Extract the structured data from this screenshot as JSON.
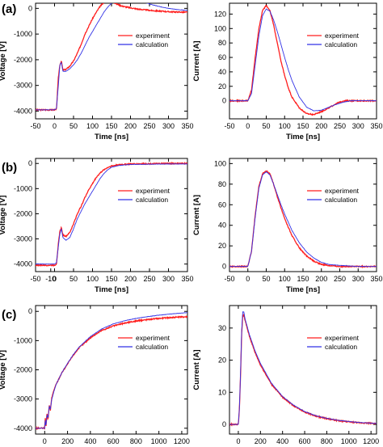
{
  "panel_labels": [
    "(a)",
    "(b)",
    "(c)"
  ],
  "colors": {
    "experiment": "#ff1e1e",
    "calculation": "#3232e6"
  },
  "chart_data": [
    {
      "type": "line",
      "panel": "(a)",
      "quantity": "voltage",
      "xlabel": "Time [ns]",
      "ylabel": "Voltage [V]",
      "xlim": [
        -50,
        350
      ],
      "ylim": [
        -4300,
        200
      ],
      "xticks": [
        -50,
        0,
        50,
        100,
        150,
        200,
        250,
        300,
        350
      ],
      "yticks": [
        -4000,
        -3000,
        -2000,
        -1000,
        0
      ],
      "legend": "top-right",
      "series": [
        {
          "name": "experiment",
          "x": [
            -50,
            0,
            5,
            10,
            14,
            18,
            22,
            30,
            40,
            50,
            60,
            70,
            80,
            90,
            100,
            110,
            120,
            130,
            140,
            150,
            160,
            170,
            180,
            200,
            220,
            240,
            260,
            280,
            300,
            320,
            350
          ],
          "y": [
            -3950,
            -3950,
            -3950,
            -2700,
            -2200,
            -2050,
            -2400,
            -2380,
            -2250,
            -2050,
            -1750,
            -1400,
            -1000,
            -700,
            -400,
            -150,
            80,
            230,
            300,
            270,
            200,
            130,
            80,
            20,
            -30,
            -60,
            -90,
            -110,
            -130,
            -140,
            -150
          ]
        },
        {
          "name": "calculation",
          "x": [
            -50,
            0,
            5,
            10,
            14,
            18,
            22,
            30,
            40,
            50,
            60,
            70,
            80,
            90,
            100,
            110,
            120,
            130,
            140,
            150,
            160,
            170,
            180,
            200,
            220,
            240,
            260,
            280,
            300,
            320,
            350
          ],
          "y": [
            -3950,
            -3950,
            -3900,
            -3000,
            -2200,
            -2100,
            -2450,
            -2450,
            -2350,
            -2200,
            -2000,
            -1750,
            -1450,
            -1150,
            -900,
            -650,
            -400,
            -150,
            50,
            200,
            300,
            330,
            340,
            320,
            280,
            220,
            130,
            60,
            0,
            -40,
            -80
          ]
        }
      ]
    },
    {
      "type": "line",
      "panel": "(a)",
      "quantity": "current",
      "xlabel": "Time [ns]",
      "ylabel": "Current [A]",
      "xlim": [
        -50,
        350
      ],
      "ylim": [
        -25,
        135
      ],
      "xticks": [
        -50,
        0,
        50,
        100,
        150,
        200,
        250,
        300,
        350
      ],
      "yticks": [
        0,
        20,
        40,
        60,
        80,
        100,
        120
      ],
      "legend": "top-right",
      "series": [
        {
          "name": "experiment",
          "x": [
            -50,
            0,
            10,
            20,
            30,
            40,
            50,
            60,
            70,
            80,
            90,
            100,
            110,
            120,
            140,
            160,
            180,
            200,
            220,
            240,
            260,
            280,
            300,
            350
          ],
          "y": [
            0,
            0,
            15,
            60,
            100,
            125,
            132,
            125,
            105,
            80,
            55,
            35,
            18,
            5,
            -10,
            -18,
            -19,
            -15,
            -10,
            -4,
            0,
            0,
            0,
            0
          ]
        },
        {
          "name": "calculation",
          "x": [
            -50,
            0,
            10,
            20,
            30,
            40,
            50,
            60,
            70,
            80,
            90,
            100,
            110,
            120,
            140,
            160,
            180,
            200,
            220,
            240,
            260,
            280,
            300,
            350
          ],
          "y": [
            0,
            0,
            10,
            50,
            90,
            118,
            127,
            124,
            112,
            96,
            78,
            60,
            43,
            28,
            5,
            -9,
            -14,
            -13,
            -9,
            -5,
            -2,
            0,
            0,
            0
          ]
        }
      ]
    },
    {
      "type": "line",
      "panel": "(b)",
      "quantity": "voltage",
      "xlabel": "Time [ns]",
      "ylabel": "Voltage [V]",
      "xlim": [
        -50,
        350
      ],
      "ylim": [
        -4300,
        200
      ],
      "xticks": [
        -50,
        -10,
        0,
        50,
        100,
        150,
        200,
        250,
        300,
        350
      ],
      "yticks": [
        -4000,
        -3000,
        -2000,
        -1000,
        0
      ],
      "legend": "top-right",
      "series": [
        {
          "name": "experiment",
          "x": [
            -50,
            0,
            5,
            10,
            14,
            18,
            22,
            30,
            40,
            50,
            60,
            70,
            80,
            90,
            100,
            110,
            120,
            130,
            140,
            150,
            170,
            200,
            250,
            300,
            350
          ],
          "y": [
            -4050,
            -4050,
            -4000,
            -3200,
            -2700,
            -2550,
            -2850,
            -2900,
            -2750,
            -2400,
            -2000,
            -1700,
            -1350,
            -1050,
            -800,
            -550,
            -380,
            -250,
            -160,
            -100,
            -50,
            -20,
            -10,
            0,
            0
          ]
        },
        {
          "name": "calculation",
          "x": [
            -50,
            0,
            5,
            10,
            14,
            18,
            22,
            30,
            40,
            50,
            60,
            70,
            80,
            90,
            100,
            110,
            120,
            130,
            140,
            150,
            170,
            200,
            250,
            300,
            350
          ],
          "y": [
            -4000,
            -4000,
            -3950,
            -3300,
            -2800,
            -2600,
            -2950,
            -3050,
            -2950,
            -2600,
            -2200,
            -1900,
            -1600,
            -1350,
            -1100,
            -850,
            -600,
            -400,
            -250,
            -150,
            -80,
            -40,
            -30,
            -20,
            -20
          ]
        }
      ]
    },
    {
      "type": "line",
      "panel": "(b)",
      "quantity": "current",
      "xlabel": "Time [ns]",
      "ylabel": "Current [A]",
      "xlim": [
        -50,
        350
      ],
      "ylim": [
        -5,
        105
      ],
      "xticks": [
        -50,
        0,
        50,
        100,
        150,
        200,
        250,
        300,
        350
      ],
      "yticks": [
        0,
        20,
        40,
        60,
        80,
        100
      ],
      "legend": "top-right",
      "series": [
        {
          "name": "experiment",
          "x": [
            -50,
            0,
            10,
            20,
            30,
            40,
            50,
            60,
            70,
            80,
            90,
            100,
            110,
            120,
            140,
            160,
            180,
            200,
            220,
            250,
            300,
            350
          ],
          "y": [
            0,
            0,
            15,
            50,
            78,
            90,
            93,
            90,
            80,
            68,
            57,
            47,
            38,
            30,
            18,
            10,
            5,
            2,
            1,
            0,
            0,
            0
          ]
        },
        {
          "name": "calculation",
          "x": [
            -50,
            0,
            10,
            20,
            30,
            40,
            50,
            60,
            70,
            80,
            90,
            100,
            110,
            120,
            140,
            160,
            180,
            200,
            220,
            250,
            300,
            350
          ],
          "y": [
            0,
            0,
            15,
            48,
            76,
            89,
            92,
            89,
            80,
            70,
            60,
            51,
            43,
            35,
            23,
            14,
            8,
            4,
            2,
            1,
            0,
            0
          ]
        }
      ]
    },
    {
      "type": "line",
      "panel": "(c)",
      "quantity": "voltage",
      "xlabel": "Time [ns]",
      "ylabel": "Voltage [V]",
      "xlim": [
        -80,
        1250
      ],
      "ylim": [
        -4200,
        200
      ],
      "xticks": [
        0,
        200,
        400,
        600,
        800,
        1000,
        1200
      ],
      "yticks": [
        -4000,
        -3000,
        -2000,
        -1000,
        0
      ],
      "legend": "top-right",
      "series": [
        {
          "name": "experiment",
          "x": [
            -80,
            0,
            5,
            10,
            20,
            30,
            40,
            50,
            60,
            80,
            100,
            150,
            200,
            250,
            300,
            400,
            500,
            600,
            700,
            800,
            900,
            1000,
            1100,
            1250
          ],
          "y": [
            -4000,
            -4000,
            -3600,
            -4000,
            -3500,
            -3700,
            -3200,
            -3400,
            -3000,
            -2700,
            -2500,
            -2100,
            -1800,
            -1500,
            -1250,
            -900,
            -650,
            -500,
            -400,
            -330,
            -280,
            -240,
            -210,
            -180
          ]
        },
        {
          "name": "calculation",
          "x": [
            -80,
            0,
            5,
            10,
            20,
            30,
            40,
            50,
            60,
            80,
            100,
            150,
            200,
            250,
            300,
            400,
            500,
            600,
            700,
            800,
            900,
            1000,
            1100,
            1250
          ],
          "y": [
            -4000,
            -4000,
            -3700,
            -3950,
            -3550,
            -3650,
            -3250,
            -3350,
            -3050,
            -2750,
            -2500,
            -2100,
            -1780,
            -1480,
            -1230,
            -860,
            -600,
            -430,
            -320,
            -240,
            -180,
            -130,
            -90,
            -40
          ]
        }
      ]
    },
    {
      "type": "line",
      "panel": "(c)",
      "quantity": "current",
      "xlabel": "Time [ns]",
      "ylabel": "Current [A]",
      "xlim": [
        -80,
        1250
      ],
      "ylim": [
        -3,
        37
      ],
      "xticks": [
        0,
        200,
        400,
        600,
        800,
        1000,
        1200
      ],
      "yticks": [
        0,
        10,
        20,
        30
      ],
      "legend": "top-right",
      "series": [
        {
          "name": "experiment",
          "x": [
            -80,
            0,
            10,
            20,
            30,
            40,
            50,
            60,
            80,
            100,
            150,
            200,
            300,
            400,
            500,
            600,
            700,
            800,
            900,
            1000,
            1100,
            1250
          ],
          "y": [
            0,
            0,
            5,
            15,
            28,
            34,
            34,
            32.5,
            30,
            27.5,
            22.5,
            18.5,
            12.5,
            8.5,
            5.8,
            3.9,
            2.6,
            1.8,
            1.2,
            0.8,
            0.5,
            0.3
          ]
        },
        {
          "name": "calculation",
          "x": [
            -80,
            0,
            10,
            20,
            30,
            40,
            50,
            60,
            80,
            100,
            150,
            200,
            300,
            400,
            500,
            600,
            700,
            800,
            900,
            1000,
            1100,
            1250
          ],
          "y": [
            0,
            0,
            5,
            16,
            29,
            35,
            35,
            33,
            30.5,
            28,
            23,
            19,
            12.8,
            8.7,
            6,
            4,
            2.7,
            1.9,
            1.3,
            0.9,
            0.6,
            0.3
          ]
        }
      ]
    }
  ]
}
